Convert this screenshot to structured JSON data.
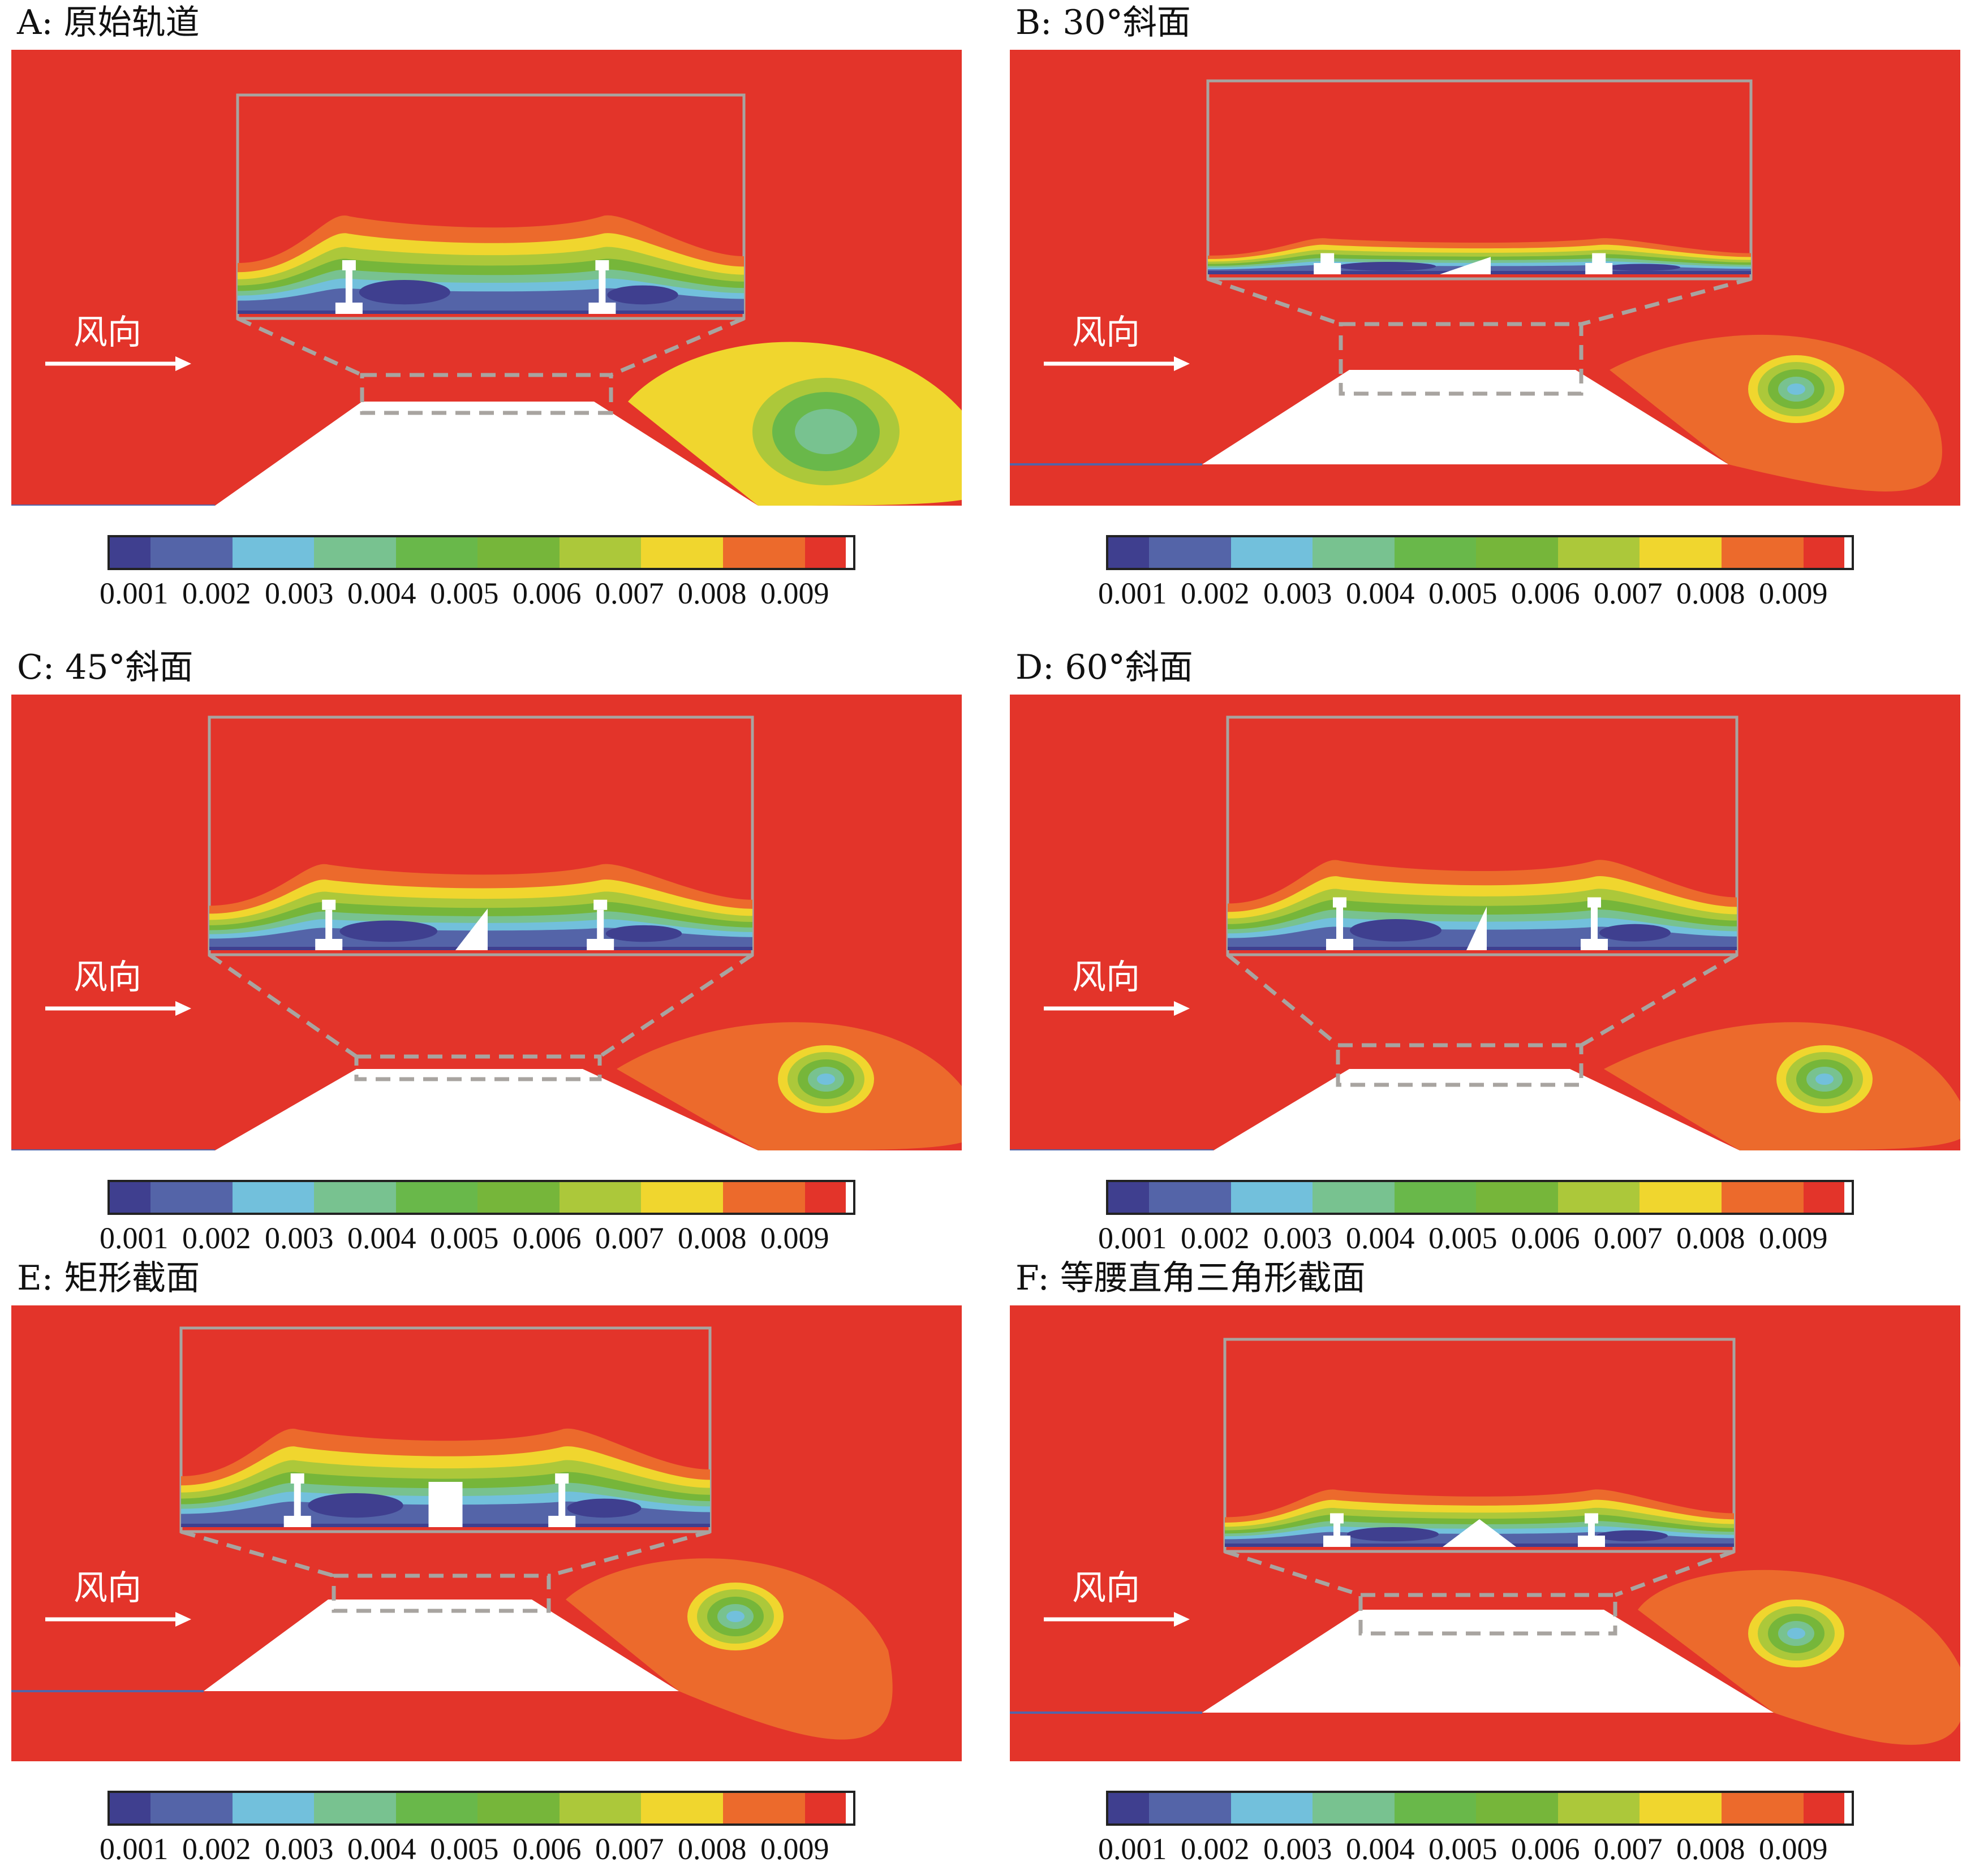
{
  "figure": {
    "wind_label": "风向",
    "colorbar": {
      "colors": [
        "#3f3f8f",
        "#5464a8",
        "#72c0dc",
        "#78c290",
        "#69b84a",
        "#76b63a",
        "#acc83a",
        "#f0d62e",
        "#ec6a2c",
        "#e3342a"
      ],
      "widths": [
        0.055,
        0.11,
        0.11,
        0.11,
        0.11,
        0.11,
        0.11,
        0.11,
        0.11,
        0.055
      ],
      "ticks": [
        "0.001",
        "0.002",
        "0.003",
        "0.004",
        "0.005",
        "0.006",
        "0.007",
        "0.008",
        "0.009"
      ]
    }
  },
  "panels": [
    {
      "id": "A",
      "title": "A: 原始轨道",
      "barrier": "none",
      "wake": "yellow"
    },
    {
      "id": "B",
      "title": "B: 30°斜面",
      "barrier": "30",
      "wake": "orange"
    },
    {
      "id": "C",
      "title": "C: 45°斜面",
      "barrier": "45",
      "wake": "orange"
    },
    {
      "id": "D",
      "title": "D: 60°斜面",
      "barrier": "60",
      "wake": "orange"
    },
    {
      "id": "E",
      "title": "E: 矩形截面",
      "barrier": "rect",
      "wake": "orange"
    },
    {
      "id": "F",
      "title": "F: 等腰直角三角形截面",
      "barrier": "isoright",
      "wake": "orange"
    }
  ]
}
